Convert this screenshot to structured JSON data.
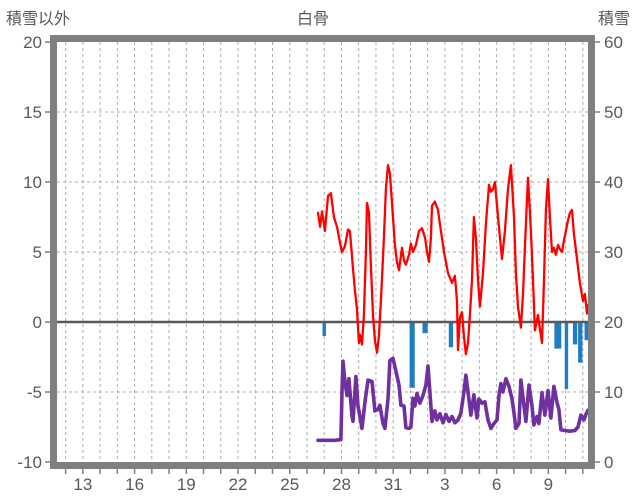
{
  "chart_data": {
    "type": "line",
    "title": "白骨",
    "left_axis": {
      "label": "積雪以外",
      "min": -10,
      "max": 20,
      "ticks": [
        20,
        15,
        10,
        5,
        0,
        -5,
        -10
      ]
    },
    "right_axis": {
      "label": "積雪",
      "min": 0,
      "max": 60,
      "ticks": [
        60,
        50,
        40,
        30,
        20,
        10,
        0
      ]
    },
    "x_axis": {
      "min": 11.5,
      "max": 42.3,
      "grid_step": 1,
      "grid_from": 12,
      "grid_to": 42,
      "tick_days": [
        13,
        16,
        19,
        22,
        25,
        28,
        31,
        34,
        37,
        40
      ],
      "tick_labels": [
        "13",
        "16",
        "19",
        "22",
        "25",
        "28",
        "31",
        "3",
        "6",
        "9"
      ]
    },
    "grid": {
      "h_values": [
        15,
        10,
        5,
        -5
      ],
      "zero_line": 0
    },
    "colors": {
      "red_line": "#FF0000",
      "purple_line": "#7030A0",
      "blue_bars": "#1F7DC4",
      "border": "#7F7F7F",
      "gridline": "#ACACAC",
      "zero_line": "#595959",
      "text": "#595959",
      "background": "#FFFFFF"
    },
    "series": [
      {
        "id": "red_line",
        "axis": "left",
        "style": "line",
        "points": [
          [
            26.64,
            7.8
          ],
          [
            26.76,
            6.8
          ],
          [
            26.87,
            7.9
          ],
          [
            27.04,
            6.5
          ],
          [
            27.22,
            9.0
          ],
          [
            27.39,
            9.2
          ],
          [
            27.56,
            7.5
          ],
          [
            27.74,
            6.8
          ],
          [
            27.91,
            5.7
          ],
          [
            28.03,
            5.0
          ],
          [
            28.2,
            5.4
          ],
          [
            28.38,
            6.6
          ],
          [
            28.49,
            6.5
          ],
          [
            28.67,
            3.8
          ],
          [
            28.78,
            2.3
          ],
          [
            28.9,
            0.9
          ],
          [
            29.01,
            -1.5
          ],
          [
            29.07,
            -0.9
          ],
          [
            29.19,
            -1.6
          ],
          [
            29.3,
            0.5
          ],
          [
            29.42,
            5.0
          ],
          [
            29.48,
            8.5
          ],
          [
            29.6,
            7.8
          ],
          [
            29.71,
            4.0
          ],
          [
            29.83,
            0.5
          ],
          [
            29.94,
            -1.3
          ],
          [
            30.06,
            -2.2
          ],
          [
            30.17,
            -1.0
          ],
          [
            30.29,
            1.5
          ],
          [
            30.46,
            6.0
          ],
          [
            30.58,
            9.5
          ],
          [
            30.7,
            11.2
          ],
          [
            30.81,
            10.6
          ],
          [
            30.93,
            8.5
          ],
          [
            31.1,
            5.5
          ],
          [
            31.22,
            4.3
          ],
          [
            31.34,
            3.7
          ],
          [
            31.51,
            5.3
          ],
          [
            31.63,
            4.4
          ],
          [
            31.74,
            4.1
          ],
          [
            31.92,
            4.8
          ],
          [
            32.03,
            5.6
          ],
          [
            32.15,
            5.0
          ],
          [
            32.32,
            5.5
          ],
          [
            32.5,
            6.5
          ],
          [
            32.67,
            6.7
          ],
          [
            32.85,
            6.0
          ],
          [
            32.96,
            5.0
          ],
          [
            33.08,
            4.3
          ],
          [
            33.19,
            6.0
          ],
          [
            33.25,
            8.3
          ],
          [
            33.42,
            8.6
          ],
          [
            33.6,
            8.0
          ],
          [
            33.71,
            7.0
          ],
          [
            33.95,
            5.0
          ],
          [
            34.18,
            3.5
          ],
          [
            34.41,
            2.8
          ],
          [
            34.58,
            3.3
          ],
          [
            34.7,
            1.5
          ],
          [
            34.76,
            -2.0
          ],
          [
            34.87,
            0.3
          ],
          [
            34.99,
            0.7
          ],
          [
            35.1,
            -1.0
          ],
          [
            35.22,
            -2.3
          ],
          [
            35.34,
            -1.5
          ],
          [
            35.45,
            0.5
          ],
          [
            35.57,
            3.0
          ],
          [
            35.68,
            7.5
          ],
          [
            35.8,
            6.0
          ],
          [
            35.92,
            3.0
          ],
          [
            36.03,
            1.1
          ],
          [
            36.21,
            3.5
          ],
          [
            36.38,
            7.0
          ],
          [
            36.56,
            9.8
          ],
          [
            36.67,
            9.3
          ],
          [
            36.79,
            9.5
          ],
          [
            36.9,
            10.0
          ],
          [
            37.08,
            7.5
          ],
          [
            37.31,
            4.5
          ],
          [
            37.48,
            6.5
          ],
          [
            37.66,
            9.5
          ],
          [
            37.83,
            11.2
          ],
          [
            38.01,
            7.5
          ],
          [
            38.12,
            3.5
          ],
          [
            38.24,
            1.1
          ],
          [
            38.41,
            -0.4
          ],
          [
            38.53,
            2.0
          ],
          [
            38.7,
            7.0
          ],
          [
            38.82,
            10.3
          ],
          [
            38.99,
            6.5
          ],
          [
            39.11,
            3.0
          ],
          [
            39.22,
            -0.6
          ],
          [
            39.4,
            0.5
          ],
          [
            39.51,
            -0.5
          ],
          [
            39.63,
            -1.5
          ],
          [
            39.75,
            3.0
          ],
          [
            39.86,
            8.0
          ],
          [
            39.98,
            10.2
          ],
          [
            40.09,
            7.5
          ],
          [
            40.21,
            5.0
          ],
          [
            40.32,
            5.3
          ],
          [
            40.44,
            4.8
          ],
          [
            40.56,
            5.5
          ],
          [
            40.67,
            5.2
          ],
          [
            40.79,
            5.0
          ],
          [
            40.9,
            5.8
          ],
          [
            41.02,
            6.5
          ],
          [
            41.13,
            7.2
          ],
          [
            41.25,
            7.8
          ],
          [
            41.37,
            8.0
          ],
          [
            41.48,
            6.3
          ],
          [
            41.66,
            4.5
          ],
          [
            41.83,
            2.8
          ],
          [
            42.01,
            1.5
          ],
          [
            42.12,
            2.0
          ],
          [
            42.24,
            0.6
          ],
          [
            42.3,
            1.2
          ]
        ]
      },
      {
        "id": "purple_line",
        "axis": "right",
        "style": "line",
        "points": [
          [
            26.64,
            3.1
          ],
          [
            27.62,
            3.1
          ],
          [
            27.97,
            3.2
          ],
          [
            28.03,
            10.0
          ],
          [
            28.09,
            14.4
          ],
          [
            28.2,
            11.5
          ],
          [
            28.32,
            9.5
          ],
          [
            28.43,
            11.9
          ],
          [
            28.61,
            6.5
          ],
          [
            28.67,
            5.8
          ],
          [
            28.84,
            12.2
          ],
          [
            28.96,
            8.0
          ],
          [
            29.07,
            6.5
          ],
          [
            29.19,
            4.8
          ],
          [
            29.36,
            8.5
          ],
          [
            29.54,
            11.7
          ],
          [
            29.77,
            11.5
          ],
          [
            29.94,
            7.3
          ],
          [
            30.12,
            7.5
          ],
          [
            30.23,
            8.1
          ],
          [
            30.41,
            5.5
          ],
          [
            30.52,
            4.8
          ],
          [
            30.7,
            9.0
          ],
          [
            30.81,
            14.5
          ],
          [
            30.99,
            14.8
          ],
          [
            31.16,
            13.0
          ],
          [
            31.34,
            11.0
          ],
          [
            31.45,
            8.1
          ],
          [
            31.63,
            8.0
          ],
          [
            31.74,
            4.9
          ],
          [
            31.92,
            4.8
          ],
          [
            32.03,
            5.0
          ],
          [
            32.15,
            9.1
          ],
          [
            32.26,
            8.0
          ],
          [
            32.38,
            9.8
          ],
          [
            32.55,
            8.4
          ],
          [
            32.73,
            9.5
          ],
          [
            32.9,
            11.0
          ],
          [
            33.02,
            13.7
          ],
          [
            33.13,
            10.0
          ],
          [
            33.25,
            5.8
          ],
          [
            33.42,
            7.3
          ],
          [
            33.54,
            6.0
          ],
          [
            33.71,
            6.9
          ],
          [
            33.89,
            5.6
          ],
          [
            34.06,
            6.8
          ],
          [
            34.24,
            5.8
          ],
          [
            34.41,
            6.5
          ],
          [
            34.58,
            5.6
          ],
          [
            34.76,
            6.0
          ],
          [
            34.93,
            7.0
          ],
          [
            35.1,
            10.0
          ],
          [
            35.22,
            12.4
          ],
          [
            35.39,
            9.0
          ],
          [
            35.51,
            6.7
          ],
          [
            35.68,
            9.6
          ],
          [
            35.86,
            6.3
          ],
          [
            35.97,
            9.0
          ],
          [
            36.15,
            8.4
          ],
          [
            36.32,
            8.6
          ],
          [
            36.5,
            6.0
          ],
          [
            36.67,
            4.8
          ],
          [
            36.85,
            5.5
          ],
          [
            37.02,
            6.0
          ],
          [
            37.14,
            9.5
          ],
          [
            37.25,
            11.2
          ],
          [
            37.37,
            10.0
          ],
          [
            37.54,
            11.9
          ],
          [
            37.72,
            10.8
          ],
          [
            37.89,
            9.0
          ],
          [
            38.01,
            7.0
          ],
          [
            38.12,
            4.8
          ],
          [
            38.3,
            5.5
          ],
          [
            38.41,
            11.7
          ],
          [
            38.59,
            8.0
          ],
          [
            38.7,
            5.8
          ],
          [
            38.88,
            11.0
          ],
          [
            39.05,
            8.0
          ],
          [
            39.16,
            5.3
          ],
          [
            39.34,
            6.5
          ],
          [
            39.45,
            5.5
          ],
          [
            39.63,
            9.9
          ],
          [
            39.8,
            6.7
          ],
          [
            39.98,
            10.2
          ],
          [
            40.15,
            6.3
          ],
          [
            40.32,
            10.8
          ],
          [
            40.5,
            8.5
          ],
          [
            40.61,
            7.5
          ],
          [
            40.73,
            4.6
          ],
          [
            40.96,
            4.5
          ],
          [
            41.25,
            4.4
          ],
          [
            41.54,
            4.5
          ],
          [
            41.72,
            5.0
          ],
          [
            41.89,
            6.7
          ],
          [
            42.06,
            6.0
          ],
          [
            42.18,
            6.8
          ],
          [
            42.3,
            7.4
          ]
        ]
      },
      {
        "id": "blue_bars",
        "axis": "left",
        "style": "bar",
        "points": [
          [
            27.0,
            -1.0,
            0.2
          ],
          [
            32.1,
            -4.7,
            0.3
          ],
          [
            32.85,
            -0.8,
            0.3
          ],
          [
            34.35,
            -1.8,
            0.25
          ],
          [
            40.55,
            -1.9,
            0.4
          ],
          [
            41.05,
            -4.8,
            0.2
          ],
          [
            41.55,
            -1.6,
            0.25
          ],
          [
            41.85,
            -2.9,
            0.25
          ],
          [
            42.2,
            -1.3,
            0.2
          ]
        ]
      }
    ]
  }
}
